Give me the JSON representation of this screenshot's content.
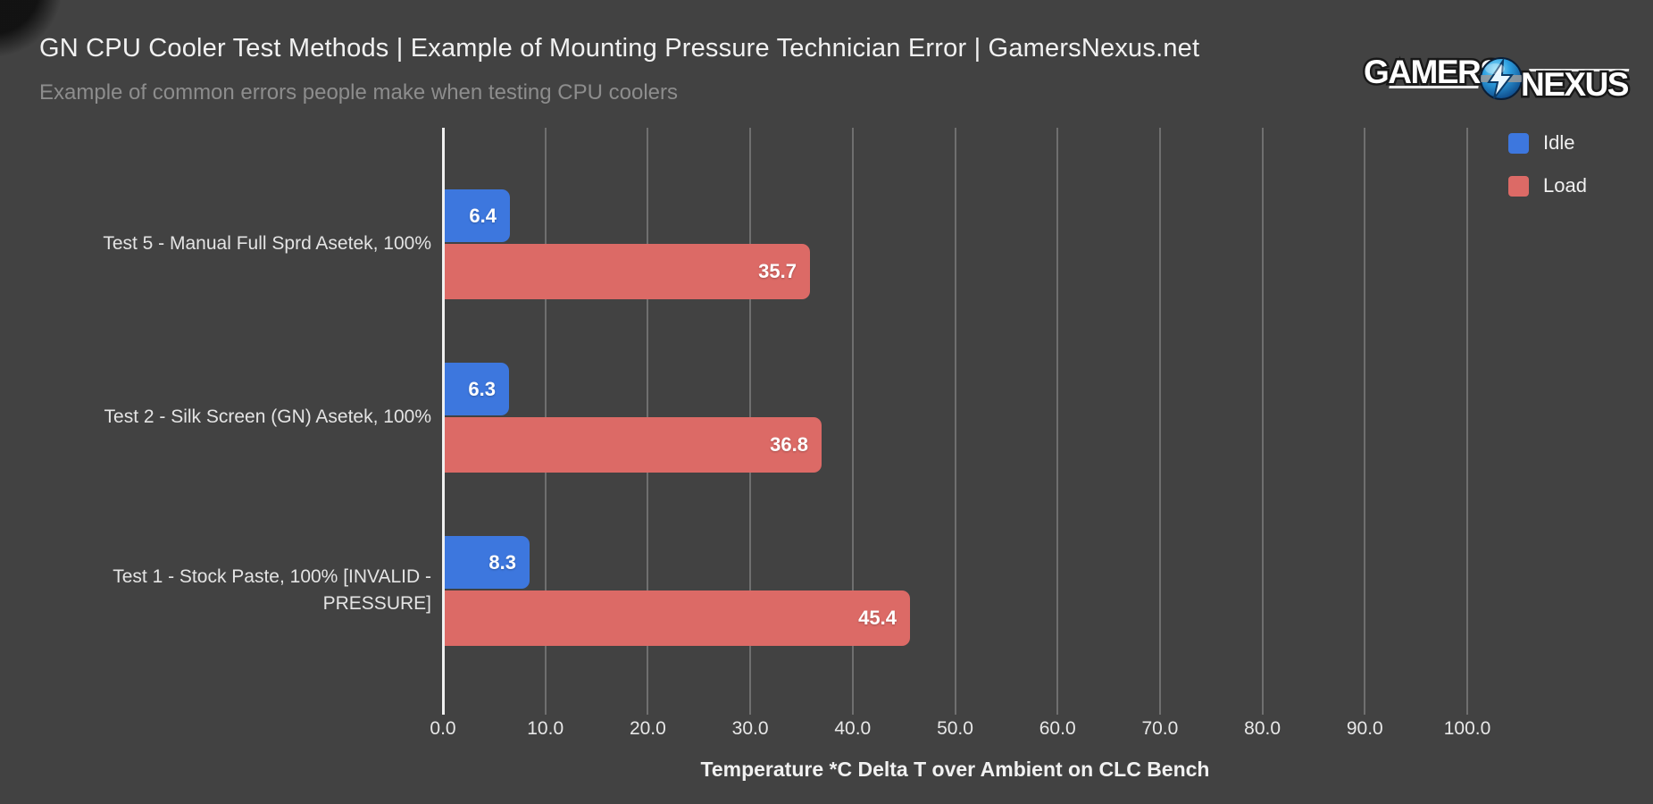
{
  "header": {
    "title": "GN CPU Cooler Test Methods | Example of Mounting Pressure Technician Error | GamersNexus.net",
    "subtitle": "Example of common errors people make when testing CPU coolers"
  },
  "logo": {
    "word1": "GAMERS",
    "word2": "NEXUS"
  },
  "legend": {
    "items": [
      {
        "label": "Idle",
        "color": "#3d77de"
      },
      {
        "label": "Load",
        "color": "#dc6a66"
      }
    ]
  },
  "colors": {
    "background": "#424242",
    "grid": "#6f6f6f",
    "zero_axis": "#f0f0f0",
    "idle": "#3d77de",
    "load": "#dc6a66"
  },
  "chart_data": {
    "type": "bar",
    "orientation": "horizontal",
    "title": "GN CPU Cooler Test Methods | Example of Mounting Pressure Technician Error | GamersNexus.net",
    "subtitle": "Example of common errors people make when testing CPU coolers",
    "categories": [
      "Test 5 - Manual Full Sprd Asetek, 100%",
      "Test 2 - Silk Screen (GN) Asetek, 100%",
      "Test 1 - Stock Paste, 100% [INVALID - PRESSURE]"
    ],
    "series": [
      {
        "name": "Idle",
        "color": "#3d77de",
        "values": [
          6.4,
          6.3,
          8.3
        ]
      },
      {
        "name": "Load",
        "color": "#dc6a66",
        "values": [
          35.7,
          36.8,
          45.4
        ]
      }
    ],
    "xlabel": "Temperature *C Delta T over Ambient on CLC Bench",
    "ylabel": "",
    "xlim": [
      0,
      100
    ],
    "xtick_step": 10,
    "xticklabels": [
      "0.0",
      "10.0",
      "20.0",
      "30.0",
      "40.0",
      "50.0",
      "60.0",
      "70.0",
      "80.0",
      "90.0",
      "100.0"
    ],
    "grid": true,
    "legend_position": "top-right",
    "value_labels": "inside-end"
  }
}
